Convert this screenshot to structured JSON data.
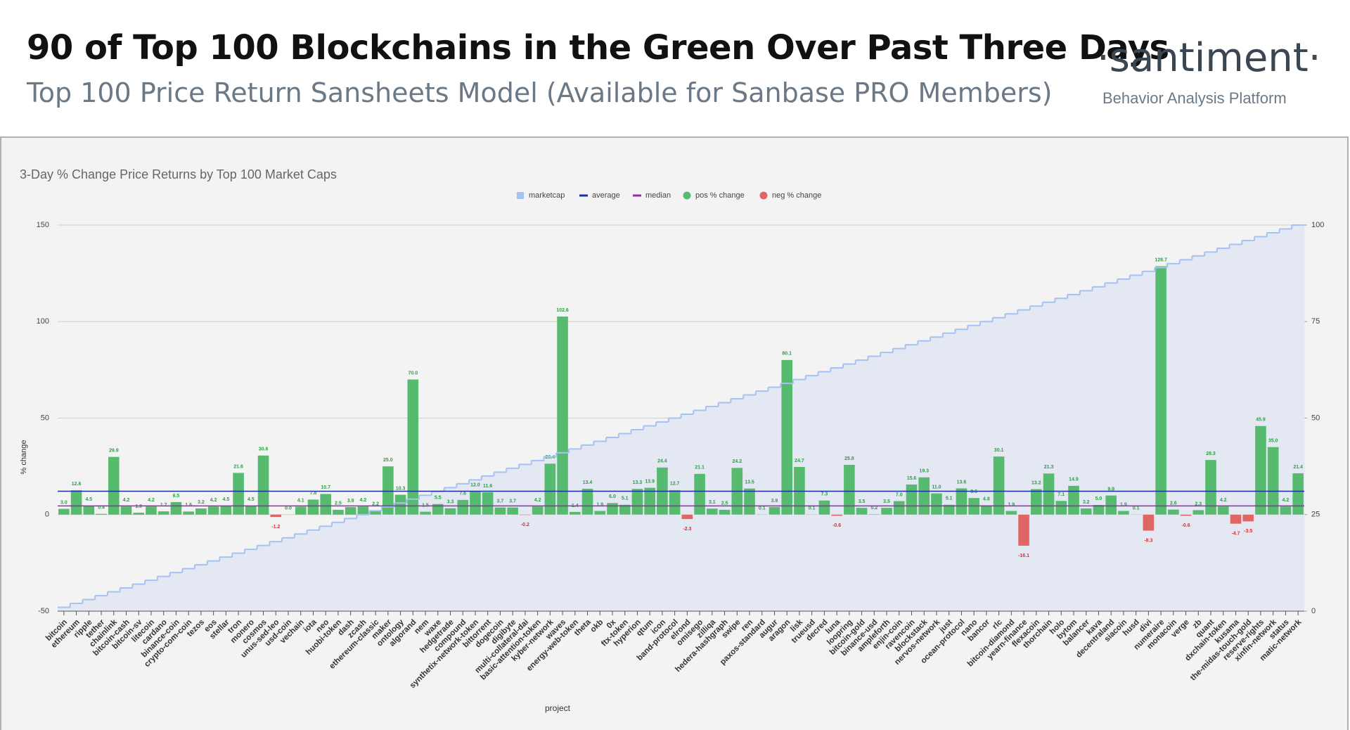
{
  "header": {
    "title": "90 of Top 100 Blockchains in the Green Over Past Three Days",
    "subtitle": "Top 100 Price Return Sansheets Model (Available for Sanbase PRO Members)",
    "logo": "·santiment·",
    "tagline": "Behavior Analysis Platform"
  },
  "chart_data": {
    "type": "bar",
    "title": "3-Day % Change Price Returns by Top 100 Market Caps",
    "x_label": "project",
    "y_label": "% change",
    "categories": [
      "bitcoin",
      "ethereum",
      "ripple",
      "tether",
      "chainlink",
      "bitcoin-cash",
      "bitcoin-sv",
      "litecoin",
      "cardano",
      "binance-coin",
      "crypto-com-coin",
      "tezos",
      "eos",
      "stellar",
      "tron",
      "monero",
      "cosmos",
      "unus-sed-leo",
      "usd-coin",
      "vechain",
      "iota",
      "neo",
      "huobi-token",
      "dash",
      "zcash",
      "ethereum-classic",
      "maker",
      "ontology",
      "algorand",
      "nem",
      "waxe",
      "hedgetrade",
      "compound",
      "synthetix-network-token",
      "bittorrent",
      "dogecoin",
      "digibyte",
      "multi-collateral-dai",
      "basic-attention-token",
      "kyber-network",
      "waves",
      "energy-web-token",
      "theta",
      "okb",
      "0x",
      "ftx-token",
      "hyperion",
      "qtum",
      "icon",
      "band-protocol",
      "elrond",
      "omisego",
      "zilliqa",
      "hedera-hashgraph",
      "swipe",
      "ren",
      "paxos-standard",
      "augur",
      "aragon",
      "lisk",
      "trueusd",
      "decred",
      "luna",
      "loopring",
      "bitcoin-gold",
      "binance-usd",
      "ampleforth",
      "enjin-coin",
      "ravencoin",
      "blockstack",
      "nervos-network",
      "just",
      "ocean-protocol",
      "nano",
      "bancor",
      "rlc",
      "bitcoin-diamond",
      "yearn-finance",
      "flexacoin",
      "thorchain",
      "holo",
      "bytom",
      "balancer",
      "kava",
      "decentraland",
      "siacoin",
      "husd",
      "divi",
      "numeraire",
      "monacoin",
      "verge",
      "zb",
      "quant",
      "dxchain-token",
      "kusama",
      "the-midas-touch-gold",
      "reserve-rights",
      "xinfin-network",
      "status",
      "matic-network"
    ],
    "values": [
      3.0,
      12.6,
      4.5,
      0.4,
      29.9,
      4.2,
      1.0,
      4.2,
      1.7,
      6.5,
      1.6,
      3.2,
      4.2,
      4.5,
      21.6,
      4.5,
      30.6,
      -1.2,
      0.0,
      4.1,
      7.8,
      10.7,
      2.5,
      3.9,
      4.2,
      2.2,
      25.0,
      10.3,
      70.0,
      1.5,
      5.5,
      3.3,
      7.6,
      12.0,
      11.6,
      3.7,
      3.7,
      -0.2,
      4.2,
      26.4,
      102.6,
      1.4,
      13.4,
      1.9,
      6.0,
      5.1,
      13.3,
      13.9,
      24.4,
      12.7,
      -2.3,
      21.1,
      3.1,
      2.5,
      24.2,
      13.5,
      0.1,
      3.9,
      80.1,
      24.7,
      0.1,
      7.3,
      -0.6,
      25.8,
      3.5,
      0.2,
      3.5,
      7.0,
      15.6,
      19.3,
      11.0,
      5.1,
      13.6,
      8.6,
      4.8,
      30.1,
      1.9,
      -16.1,
      13.2,
      21.3,
      7.1,
      14.9,
      3.2,
      5.0,
      9.9,
      1.9,
      0.1,
      -8.3,
      128.7,
      2.6,
      -0.6,
      2.3,
      28.3,
      4.2,
      -4.7,
      -3.5,
      45.9,
      35.0,
      4.2,
      21.4
    ],
    "value_labels": [
      "3.0",
      "12.6",
      "4.5",
      "0.4",
      "29.9",
      "4.2",
      "1.0",
      "4.2",
      "1.7",
      "6.5",
      "1.6",
      "3.2",
      "4.2",
      "4.5",
      "21.6",
      "4.5",
      "30.6",
      "-1.2",
      "0.0",
      "4.1",
      "7.8",
      "10.7",
      "2.5",
      "3.9",
      "4.2",
      "2.2",
      "25.0",
      "10.3",
      "70.0",
      "1.5",
      "5.5",
      "3.3",
      "7.6",
      "12.0",
      "11.6",
      "3.7",
      "3.7",
      "-0.2",
      "4.2",
      "26.4",
      "102.6",
      "1.4",
      "13.4",
      "1.9",
      "6.0",
      "5.1",
      "13.3",
      "13.9",
      "24.4",
      "12.7",
      "-2.3",
      "21.1",
      "3.1",
      "2.5",
      "24.2",
      "13.5",
      "0.1",
      "3.9",
      "80.1",
      "24.7",
      "0.1",
      "7.3",
      "-0.6",
      "25.8",
      "3.5",
      "0.2",
      "3.5",
      "7.0",
      "15.6",
      "19.3",
      "11.0",
      "5.1",
      "13.6",
      "8.6",
      "4.8",
      "30.1",
      "1.9",
      "-16.1",
      "13.2",
      "21.3",
      "7.1",
      "14.9",
      "3.2",
      "5.0",
      "9.9",
      "1.9",
      "0.1",
      "-8.3",
      "128.7",
      "2.6",
      "-0.6",
      "2.3",
      "28.3",
      "4.2",
      "-4.7",
      "-3.5",
      "45.9",
      "35.0",
      "4.2",
      "21.4"
    ],
    "series": [
      {
        "name": "marketcap",
        "color": "#a4c2f4",
        "axis": "y2",
        "values": [
          1,
          2,
          3,
          4,
          5,
          6,
          7,
          8,
          9,
          10,
          11,
          12,
          13,
          14,
          15,
          16,
          17,
          18,
          19,
          20,
          21,
          22,
          23,
          24,
          25,
          26,
          27,
          28,
          29,
          30,
          31,
          32,
          33,
          34,
          35,
          36,
          37,
          38,
          39,
          40,
          41,
          42,
          43,
          44,
          45,
          46,
          47,
          48,
          49,
          50,
          51,
          52,
          53,
          54,
          55,
          56,
          57,
          58,
          59,
          60,
          61,
          62,
          63,
          64,
          65,
          66,
          67,
          68,
          69,
          70,
          71,
          72,
          73,
          74,
          75,
          76,
          77,
          78,
          79,
          80,
          81,
          82,
          83,
          84,
          85,
          86,
          87,
          88,
          89,
          90,
          91,
          92,
          93,
          94,
          95,
          96,
          97,
          98,
          99,
          100
        ]
      },
      {
        "name": "average",
        "color": "#1a2fa8",
        "value": 12.1
      },
      {
        "name": "median",
        "color": "#9c27b0",
        "value": 4.5
      },
      {
        "name": "pos % change",
        "color": "#57bb6f"
      },
      {
        "name": "neg % change",
        "color": "#e06666"
      }
    ],
    "ylim": [
      -50,
      150
    ],
    "yticks": [
      -50,
      0,
      50,
      100,
      150
    ],
    "y2lim": [
      0,
      100
    ],
    "y2ticks": [
      0,
      25,
      50,
      75,
      100
    ],
    "grid": true,
    "legend": "top"
  }
}
